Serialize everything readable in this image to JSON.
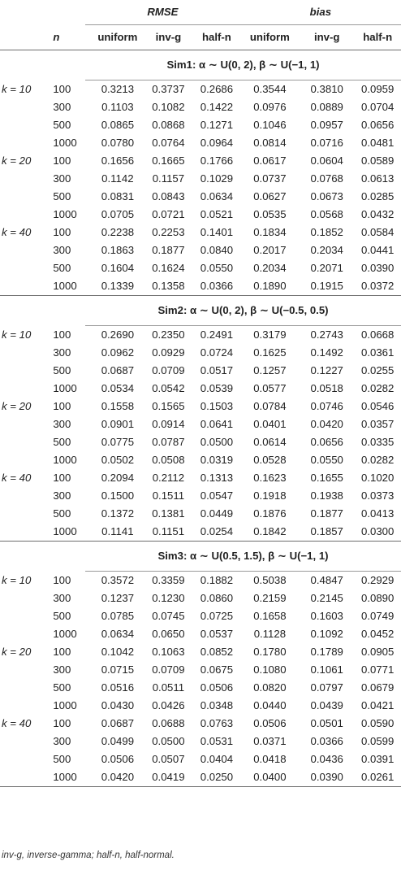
{
  "header": {
    "group_rmse": "RMSE",
    "group_bias": "bias",
    "col_n": "n",
    "cols": [
      "uniform",
      "inv-g",
      "half-n",
      "uniform",
      "inv-g",
      "half-n"
    ]
  },
  "sections": [
    {
      "title": "Sim1: α ∼ U(0, 2), β ∼ U(−1, 1)",
      "groups": [
        {
          "k": "k = 10",
          "rows": [
            {
              "n": "100",
              "v": [
                "0.3213",
                "0.3737",
                "0.2686",
                "0.3544",
                "0.3810",
                "0.0959"
              ]
            },
            {
              "n": "300",
              "v": [
                "0.1103",
                "0.1082",
                "0.1422",
                "0.0976",
                "0.0889",
                "0.0704"
              ]
            },
            {
              "n": "500",
              "v": [
                "0.0865",
                "0.0868",
                "0.1271",
                "0.1046",
                "0.0957",
                "0.0656"
              ]
            },
            {
              "n": "1000",
              "v": [
                "0.0780",
                "0.0764",
                "0.0964",
                "0.0814",
                "0.0716",
                "0.0481"
              ]
            }
          ]
        },
        {
          "k": "k = 20",
          "rows": [
            {
              "n": "100",
              "v": [
                "0.1656",
                "0.1665",
                "0.1766",
                "0.0617",
                "0.0604",
                "0.0589"
              ]
            },
            {
              "n": "300",
              "v": [
                "0.1142",
                "0.1157",
                "0.1029",
                "0.0737",
                "0.0768",
                "0.0613"
              ]
            },
            {
              "n": "500",
              "v": [
                "0.0831",
                "0.0843",
                "0.0634",
                "0.0627",
                "0.0673",
                "0.0285"
              ]
            },
            {
              "n": "1000",
              "v": [
                "0.0705",
                "0.0721",
                "0.0521",
                "0.0535",
                "0.0568",
                "0.0432"
              ]
            }
          ]
        },
        {
          "k": "k = 40",
          "rows": [
            {
              "n": "100",
              "v": [
                "0.2238",
                "0.2253",
                "0.1401",
                "0.1834",
                "0.1852",
                "0.0584"
              ]
            },
            {
              "n": "300",
              "v": [
                "0.1863",
                "0.1877",
                "0.0840",
                "0.2017",
                "0.2034",
                "0.0441"
              ]
            },
            {
              "n": "500",
              "v": [
                "0.1604",
                "0.1624",
                "0.0550",
                "0.2034",
                "0.2071",
                "0.0390"
              ]
            },
            {
              "n": "1000",
              "v": [
                "0.1339",
                "0.1358",
                "0.0366",
                "0.1890",
                "0.1915",
                "0.0372"
              ]
            }
          ]
        }
      ]
    },
    {
      "title": "Sim2: α ∼ U(0, 2), β ∼ U(−0.5, 0.5)",
      "groups": [
        {
          "k": "k = 10",
          "rows": [
            {
              "n": "100",
              "v": [
                "0.2690",
                "0.2350",
                "0.2491",
                "0.3179",
                "0.2743",
                "0.0668"
              ]
            },
            {
              "n": "300",
              "v": [
                "0.0962",
                "0.0929",
                "0.0724",
                "0.1625",
                "0.1492",
                "0.0361"
              ]
            },
            {
              "n": "500",
              "v": [
                "0.0687",
                "0.0709",
                "0.0517",
                "0.1257",
                "0.1227",
                "0.0255"
              ]
            },
            {
              "n": "1000",
              "v": [
                "0.0534",
                "0.0542",
                "0.0539",
                "0.0577",
                "0.0518",
                "0.0282"
              ]
            }
          ]
        },
        {
          "k": "k = 20",
          "rows": [
            {
              "n": "100",
              "v": [
                "0.1558",
                "0.1565",
                "0.1503",
                "0.0784",
                "0.0746",
                "0.0546"
              ]
            },
            {
              "n": "300",
              "v": [
                "0.0901",
                "0.0914",
                "0.0641",
                "0.0401",
                "0.0420",
                "0.0357"
              ]
            },
            {
              "n": "500",
              "v": [
                "0.0775",
                "0.0787",
                "0.0500",
                "0.0614",
                "0.0656",
                "0.0335"
              ]
            },
            {
              "n": "1000",
              "v": [
                "0.0502",
                "0.0508",
                "0.0319",
                "0.0528",
                "0.0550",
                "0.0282"
              ]
            }
          ]
        },
        {
          "k": "k = 40",
          "rows": [
            {
              "n": "100",
              "v": [
                "0.2094",
                "0.2112",
                "0.1313",
                "0.1623",
                "0.1655",
                "0.1020"
              ]
            },
            {
              "n": "300",
              "v": [
                "0.1500",
                "0.1511",
                "0.0547",
                "0.1918",
                "0.1938",
                "0.0373"
              ]
            },
            {
              "n": "500",
              "v": [
                "0.1372",
                "0.1381",
                "0.0449",
                "0.1876",
                "0.1877",
                "0.0413"
              ]
            },
            {
              "n": "1000",
              "v": [
                "0.1141",
                "0.1151",
                "0.0254",
                "0.1842",
                "0.1857",
                "0.0300"
              ]
            }
          ]
        }
      ]
    },
    {
      "title": "Sim3: α ∼ U(0.5, 1.5), β ∼ U(−1, 1)",
      "groups": [
        {
          "k": "k = 10",
          "rows": [
            {
              "n": "100",
              "v": [
                "0.3572",
                "0.3359",
                "0.1882",
                "0.5038",
                "0.4847",
                "0.2929"
              ]
            },
            {
              "n": "300",
              "v": [
                "0.1237",
                "0.1230",
                "0.0860",
                "0.2159",
                "0.2145",
                "0.0890"
              ]
            },
            {
              "n": "500",
              "v": [
                "0.0785",
                "0.0745",
                "0.0725",
                "0.1658",
                "0.1603",
                "0.0749"
              ]
            },
            {
              "n": "1000",
              "v": [
                "0.0634",
                "0.0650",
                "0.0537",
                "0.1128",
                "0.1092",
                "0.0452"
              ]
            }
          ]
        },
        {
          "k": "k = 20",
          "rows": [
            {
              "n": "100",
              "v": [
                "0.1042",
                "0.1063",
                "0.0852",
                "0.1780",
                "0.1789",
                "0.0905"
              ]
            },
            {
              "n": "300",
              "v": [
                "0.0715",
                "0.0709",
                "0.0675",
                "0.1080",
                "0.1061",
                "0.0771"
              ]
            },
            {
              "n": "500",
              "v": [
                "0.0516",
                "0.0511",
                "0.0506",
                "0.0820",
                "0.0797",
                "0.0679"
              ]
            },
            {
              "n": "1000",
              "v": [
                "0.0430",
                "0.0426",
                "0.0348",
                "0.0440",
                "0.0439",
                "0.0421"
              ]
            }
          ]
        },
        {
          "k": "k = 40",
          "rows": [
            {
              "n": "100",
              "v": [
                "0.0687",
                "0.0688",
                "0.0763",
                "0.0506",
                "0.0501",
                "0.0590"
              ]
            },
            {
              "n": "300",
              "v": [
                "0.0499",
                "0.0500",
                "0.0531",
                "0.0371",
                "0.0366",
                "0.0599"
              ]
            },
            {
              "n": "500",
              "v": [
                "0.0506",
                "0.0507",
                "0.0404",
                "0.0418",
                "0.0436",
                "0.0391"
              ]
            },
            {
              "n": "1000",
              "v": [
                "0.0420",
                "0.0419",
                "0.0250",
                "0.0400",
                "0.0390",
                "0.0261"
              ]
            }
          ]
        }
      ]
    }
  ],
  "footnote": "inv-g, inverse-gamma; half-n, half-normal."
}
